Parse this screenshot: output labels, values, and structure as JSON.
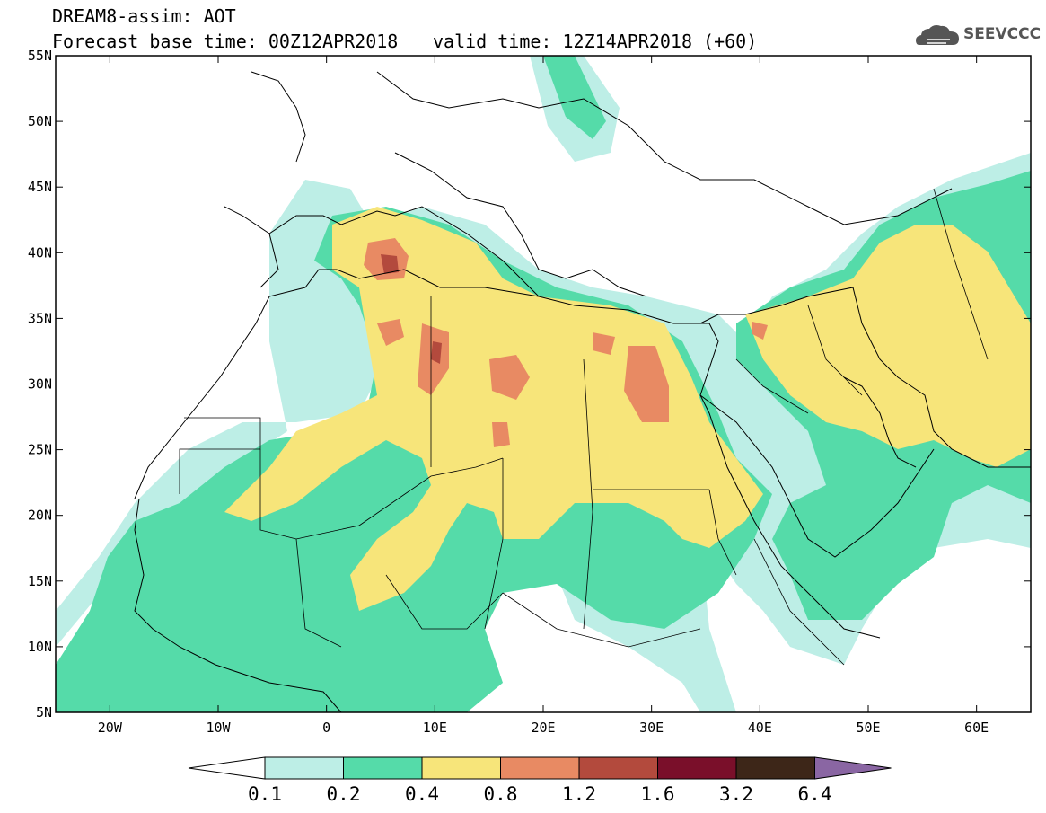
{
  "header": {
    "title_line_1": "DREAM8-assim: AOT",
    "title_line_2": "Forecast base time: 00Z12APR2018",
    "valid_time": "valid time: 12Z14APR2018 (+60)",
    "logo_text": "SEEVCCC",
    "logo_icon": "cloud-icon"
  },
  "map": {
    "lat_range": [
      5,
      55
    ],
    "lon_range": [
      -25,
      65
    ],
    "lat_labels": [
      "55N",
      "50N",
      "45N",
      "40N",
      "35N",
      "30N",
      "25N",
      "20N",
      "15N",
      "10N",
      "5N"
    ],
    "lon_labels": [
      "20W",
      "10W",
      "0",
      "10E",
      "20E",
      "30E",
      "40E",
      "50E",
      "60E"
    ],
    "lat_values": [
      55,
      50,
      45,
      40,
      35,
      30,
      25,
      20,
      15,
      10,
      5
    ],
    "lon_values": [
      -20,
      -10,
      0,
      10,
      20,
      30,
      40,
      50,
      60
    ]
  },
  "colorbar": {
    "labels": [
      "0.1",
      "0.2",
      "0.4",
      "0.8",
      "1.2",
      "1.6",
      "3.2",
      "6.4"
    ],
    "colors": [
      "#ffffff",
      "#bdeee6",
      "#55dba9",
      "#f7e57a",
      "#e88a63",
      "#b34a3d",
      "#7a0f2a",
      "#3d2618",
      "#8a66a3"
    ]
  }
}
